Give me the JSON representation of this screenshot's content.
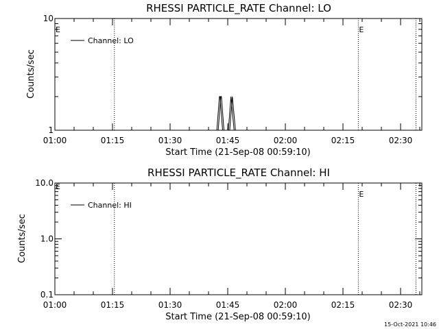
{
  "chart_data": [
    {
      "type": "line",
      "title": "RHESSI PARTICLE_RATE Channel: LO",
      "xlabel": "Start Time (21-Sep-08 00:59:10)",
      "ylabel": "Counts/sec",
      "ylog": true,
      "ylim": [
        1,
        10
      ],
      "yticks": [
        "1",
        "10"
      ],
      "xticks": [
        "01:00",
        "01:15",
        "01:30",
        "01:45",
        "02:00",
        "02:15",
        "02:30"
      ],
      "grid": false,
      "legend_position": "top-left",
      "series": [
        {
          "name": "Channel: LO",
          "x": [
            "01:42:10",
            "01:42:50",
            "01:43:00",
            "01:43:40",
            "01:44:00",
            "01:44:40",
            "01:45:10",
            "01:45:50",
            "01:46:40"
          ],
          "y": [
            1,
            2,
            2,
            1,
            1,
            1,
            1,
            2,
            1
          ]
        }
      ],
      "markers": [
        {
          "x": "01:15:30",
          "label": ""
        },
        {
          "x": "02:19:00",
          "label": "E"
        },
        {
          "x": "02:34:00",
          "label": ""
        }
      ],
      "left_label": "E"
    },
    {
      "type": "line",
      "title": "RHESSI PARTICLE_RATE Channel: HI",
      "xlabel": "Start Time (21-Sep-08 00:59:10)",
      "ylabel": "Counts/sec",
      "ylog": true,
      "ylim": [
        0.1,
        10
      ],
      "yticks": [
        "0.1",
        "1.0",
        "10.0"
      ],
      "xticks": [
        "01:00",
        "01:15",
        "01:30",
        "01:45",
        "02:00",
        "02:15",
        "02:30"
      ],
      "grid": false,
      "legend_position": "top-left",
      "series": [
        {
          "name": "Channel: HI",
          "x": [],
          "y": []
        }
      ],
      "markers": [
        {
          "x": "01:15:30",
          "label": ""
        },
        {
          "x": "02:19:00",
          "label": "E"
        },
        {
          "x": "02:34:00",
          "label": ""
        }
      ],
      "left_label": "E"
    }
  ],
  "timestamp": "15-Oct-2021 10:46"
}
